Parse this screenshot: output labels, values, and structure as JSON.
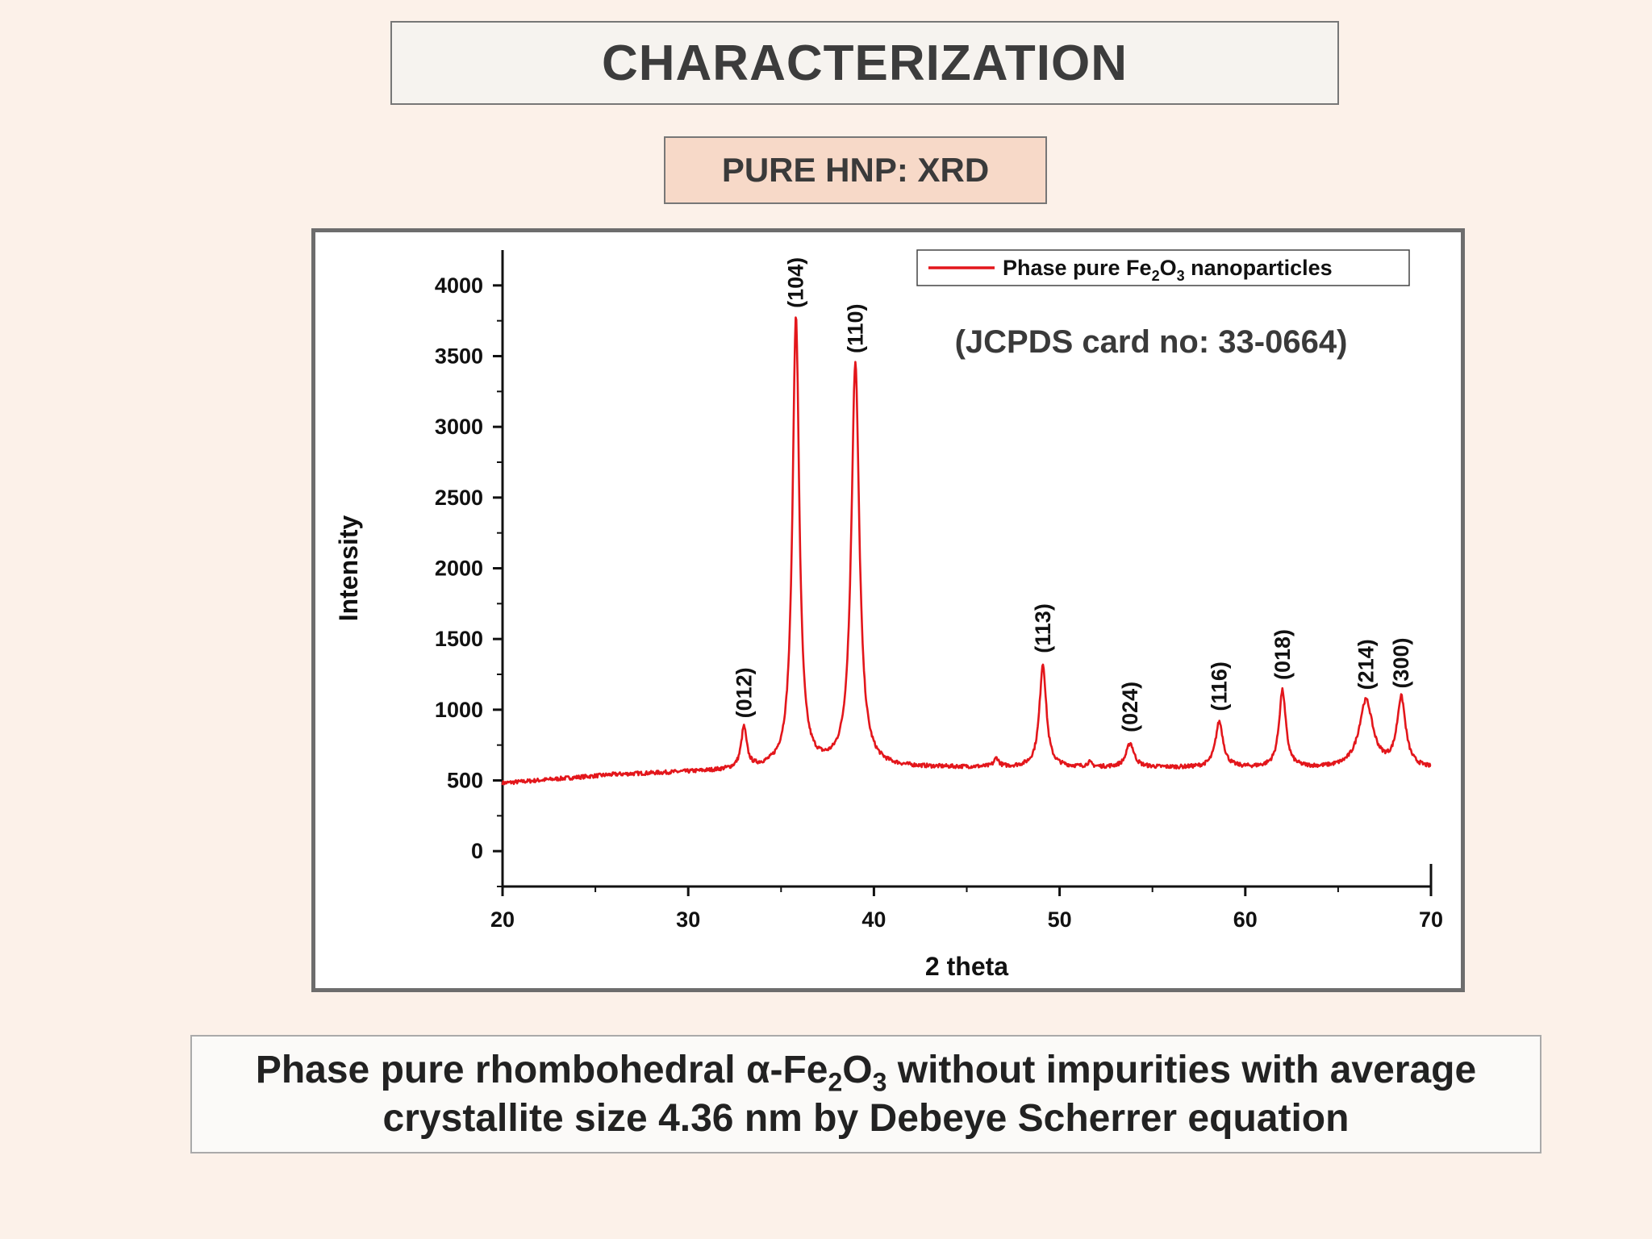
{
  "slide": {
    "title": "CHARACTERIZATION",
    "subtitle": "PURE HNP: XRD",
    "caption": {
      "line1_a": "Phase pure rhombohedral α-Fe",
      "line1_sub1": "2",
      "line1_b": "O",
      "line1_sub2": "3",
      "line1_c": " without impurities with average",
      "line2": "crystallite size 4.36 nm by Debeye Scherrer equation"
    }
  },
  "chart_data": {
    "type": "line",
    "xlabel": "2 theta",
    "ylabel": "Intensity",
    "xlim": [
      20,
      70
    ],
    "ylim": [
      -250,
      4250
    ],
    "x_ticks": [
      20,
      30,
      40,
      50,
      60,
      70
    ],
    "y_ticks": [
      0,
      500,
      1000,
      1500,
      2000,
      2500,
      3000,
      3500,
      4000
    ],
    "grid": false,
    "legend": {
      "position": "top-right",
      "text_a": "Phase pure Fe",
      "sub1": "2",
      "text_b": "O",
      "sub2": "3",
      "text_c": " nanoparticles"
    },
    "annotation": "(JCPDS card no: 33-0664)",
    "series": [
      {
        "color": "#e3161b",
        "baseline": [
          [
            20,
            480
          ],
          [
            26,
            540
          ],
          [
            35,
            580
          ],
          [
            45,
            590
          ],
          [
            55,
            590
          ],
          [
            70,
            580
          ]
        ],
        "peaks": [
          {
            "label": "(012)",
            "x": 33.0,
            "y": 860,
            "width": 0.18
          },
          {
            "label": "(104)",
            "x": 35.8,
            "y": 3760,
            "width": 0.22
          },
          {
            "label": "(110)",
            "x": 39.0,
            "y": 3440,
            "width": 0.26
          },
          {
            "label": "",
            "x": 46.6,
            "y": 650,
            "width": 0.15
          },
          {
            "label": "(113)",
            "x": 49.1,
            "y": 1320,
            "width": 0.22
          },
          {
            "label": "",
            "x": 51.6,
            "y": 620,
            "width": 0.15
          },
          {
            "label": "(024)",
            "x": 53.8,
            "y": 760,
            "width": 0.25
          },
          {
            "label": "(116)",
            "x": 58.6,
            "y": 910,
            "width": 0.25
          },
          {
            "label": "(018)",
            "x": 62.0,
            "y": 1130,
            "width": 0.22
          },
          {
            "label": "(214)",
            "x": 66.5,
            "y": 1060,
            "width": 0.45
          },
          {
            "label": "(300)",
            "x": 68.4,
            "y": 1070,
            "width": 0.28
          }
        ]
      }
    ]
  }
}
